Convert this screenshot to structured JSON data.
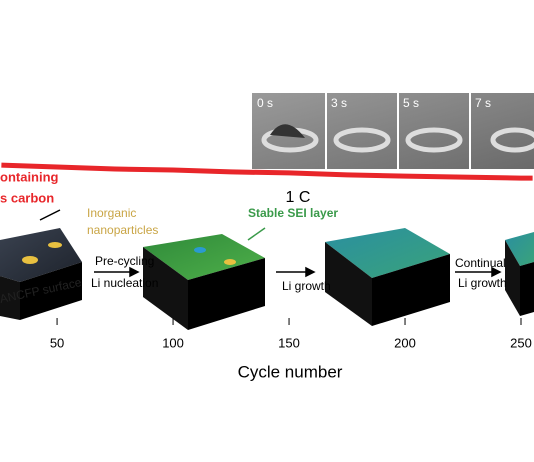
{
  "chart_data": {
    "type": "line",
    "xlabel": "Cycle number",
    "xlim": [
      25.4,
      255.6
    ],
    "xticks": [
      50,
      100,
      150,
      200,
      250
    ],
    "ylim": [
      0,
      100
    ],
    "x": [
      26,
      50,
      75,
      100,
      125,
      150,
      175,
      200,
      225,
      250,
      255
    ],
    "series": [
      {
        "color": "#e8262a",
        "values": [
          49.2,
          48.6,
          48.0,
          47.7,
          47.1,
          46.8,
          46.2,
          45.8,
          45.5,
          45.2,
          45.2
        ]
      }
    ],
    "rate_label": "1 C",
    "annotations": {
      "carbon": [
        "ontaining",
        "s carbon"
      ],
      "inorganic": [
        "Inorganic",
        "nanoparticles"
      ],
      "sei": "Stable SEI layer",
      "surface": "ANCFP surface",
      "step1": [
        "Pre-cycling",
        "Li nucleation"
      ],
      "step2": "Li growth",
      "step3": [
        "Continual",
        "Li growth"
      ]
    },
    "inset_labels": [
      "0 s",
      "3 s",
      "5 s",
      "7 s"
    ]
  }
}
